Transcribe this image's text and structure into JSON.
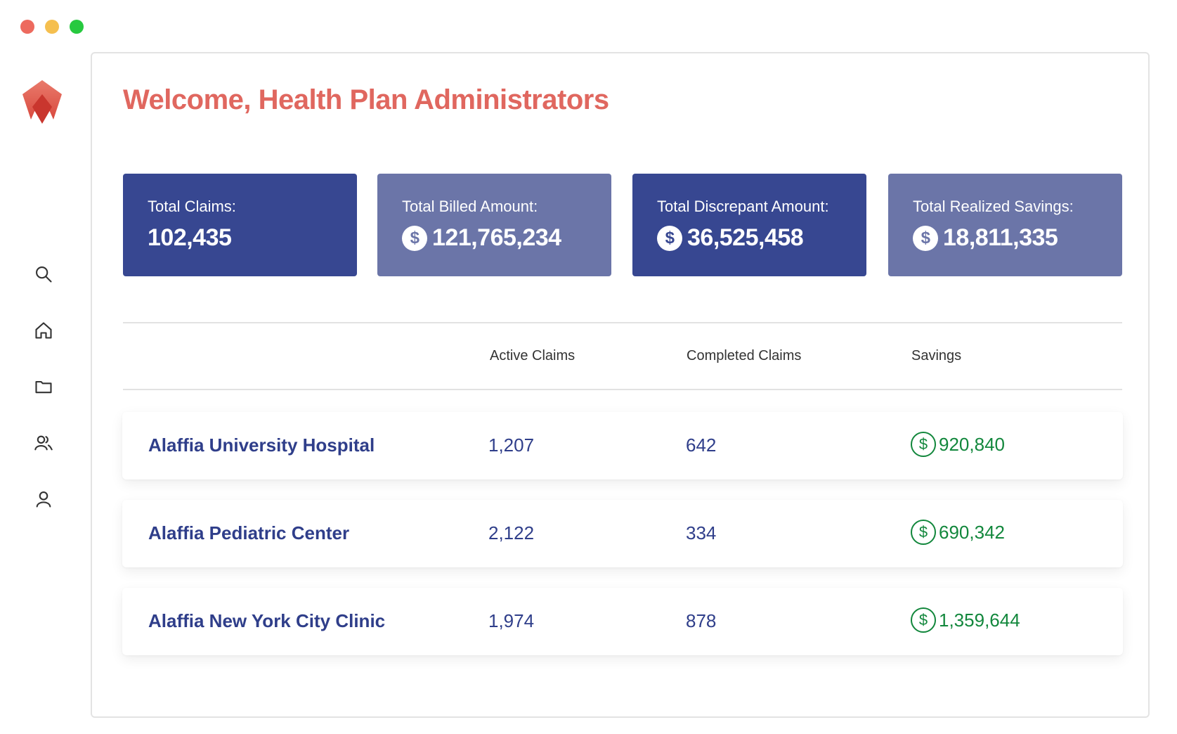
{
  "window": {
    "controls": [
      "close",
      "minimize",
      "maximize"
    ]
  },
  "brand": {
    "logo_icon": "alaffia-logo-icon",
    "accent": "#e0675f"
  },
  "sidebar": {
    "items": [
      {
        "icon": "search-icon"
      },
      {
        "icon": "home-icon"
      },
      {
        "icon": "folder-icon"
      },
      {
        "icon": "users-icon"
      },
      {
        "icon": "user-icon"
      }
    ]
  },
  "header": {
    "title": "Welcome, Health Plan Administrators"
  },
  "stats": [
    {
      "label": "Total Claims:",
      "value": "102,435",
      "currency": false,
      "color": "#374791"
    },
    {
      "label": "Total Billed Amount:",
      "value": "121,765,234",
      "currency": true,
      "color": "#6b75a8"
    },
    {
      "label": "Total Discrepant Amount:",
      "value": "36,525,458",
      "currency": true,
      "color": "#374791"
    },
    {
      "label": "Total Realized Savings:",
      "value": "18,811,335",
      "currency": true,
      "color": "#6b75a8"
    }
  ],
  "currency_symbol": "$",
  "table": {
    "columns": [
      "Active Claims",
      "Completed Claims",
      "Savings"
    ],
    "rows": [
      {
        "name": "Alaffia University Hospital",
        "active": "1,207",
        "completed": "642",
        "savings": "920,840"
      },
      {
        "name": "Alaffia Pediatric Center",
        "active": "2,122",
        "completed": "334",
        "savings": "690,342"
      },
      {
        "name": "Alaffia New York City Clinic",
        "active": "1,974",
        "completed": "878",
        "savings": "1,359,644"
      }
    ],
    "savings_color": "#12873c",
    "name_color": "#2f3e8a"
  }
}
